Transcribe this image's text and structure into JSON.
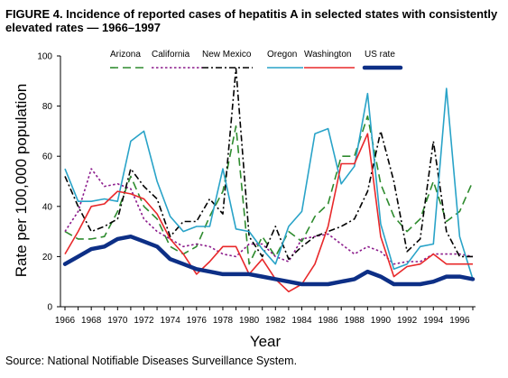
{
  "title": "FIGURE 4. Incidence of reported cases of hepatitis A in selected states with consistently elevated rates — 1966–1997",
  "source": "Source: National Notifiable Diseases Surveillance System.",
  "chart_data": {
    "type": "line",
    "xlabel": "Year",
    "ylabel": "Rate per 100,000 population",
    "ylim": [
      0,
      100
    ],
    "xlim": [
      1966,
      1997
    ],
    "yticks": [
      0,
      20,
      40,
      60,
      80,
      100
    ],
    "xticks": [
      1966,
      1968,
      1970,
      1972,
      1974,
      1976,
      1978,
      1980,
      1982,
      1984,
      1986,
      1988,
      1990,
      1992,
      1994,
      1996
    ],
    "grid": false,
    "legend": "top",
    "x": [
      1966,
      1967,
      1968,
      1969,
      1970,
      1971,
      1972,
      1973,
      1974,
      1975,
      1976,
      1977,
      1978,
      1979,
      1980,
      1981,
      1982,
      1983,
      1984,
      1985,
      1986,
      1987,
      1988,
      1989,
      1990,
      1991,
      1992,
      1993,
      1994,
      1995,
      1996,
      1997
    ],
    "series": [
      {
        "name": "Arizona",
        "color": "#2e8b2e",
        "dash": "9,5",
        "values": [
          30,
          27,
          27,
          28,
          38,
          52,
          40,
          35,
          24,
          21,
          24,
          36,
          46,
          72,
          17,
          28,
          20,
          30,
          26,
          36,
          41,
          60,
          60,
          76,
          49,
          36,
          30,
          35,
          50,
          34,
          38,
          50
        ]
      },
      {
        "name": "California",
        "color": "#8b1a8b",
        "dash": "2.5,2.5",
        "values": [
          30,
          38,
          55,
          48,
          49,
          47,
          35,
          30,
          27,
          24,
          25,
          24,
          21,
          20,
          25,
          25,
          20,
          18,
          27,
          28,
          29,
          25,
          21,
          24,
          22,
          17,
          18,
          18,
          21,
          21,
          21,
          20
        ]
      },
      {
        "name": "New Mexico",
        "color": "#000000",
        "dash": "7,3,2,3",
        "values": [
          52,
          40,
          30,
          32,
          35,
          55,
          48,
          43,
          28,
          34,
          34,
          43,
          37,
          95,
          28,
          20,
          32,
          19,
          24,
          28,
          30,
          32,
          35,
          46,
          70,
          50,
          22,
          27,
          66,
          30,
          20,
          20
        ]
      },
      {
        "name": "Oregon",
        "color": "#29a3c8",
        "dash": "",
        "values": [
          55,
          42,
          42,
          43,
          42,
          66,
          70,
          50,
          36,
          30,
          32,
          32,
          55,
          31,
          30,
          23,
          17,
          32,
          38,
          69,
          71,
          49,
          56,
          85,
          33,
          15,
          17,
          24,
          25,
          87,
          28,
          11
        ]
      },
      {
        "name": "Washington",
        "color": "#e8282a",
        "dash": "",
        "values": [
          21,
          30,
          40,
          41,
          46,
          45,
          43,
          37,
          27,
          21,
          13,
          18,
          24,
          24,
          13,
          19,
          11,
          6,
          9,
          17,
          32,
          57,
          57,
          69,
          28,
          12,
          16,
          17,
          21,
          17,
          17,
          17
        ]
      },
      {
        "name": "US rate",
        "color": "#0d2f86",
        "dash": "",
        "width": 4.5,
        "values": [
          17,
          20,
          23,
          24,
          27,
          28,
          26,
          24,
          19,
          17,
          15,
          14,
          13,
          13,
          13,
          12,
          11,
          10,
          9,
          9,
          9,
          10,
          11,
          14,
          12,
          9,
          9,
          9,
          10,
          12,
          12,
          11
        ]
      }
    ]
  }
}
